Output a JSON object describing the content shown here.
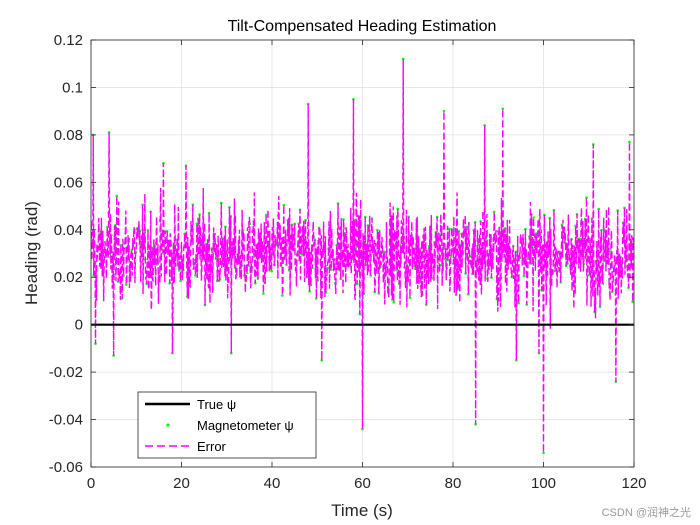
{
  "chart_data": {
    "type": "line",
    "title": "Tilt-Compensated Heading Estimation",
    "xlabel": "Time (s)",
    "ylabel": "Heading (rad)",
    "xlim": [
      0,
      120
    ],
    "ylim": [
      -0.06,
      0.12
    ],
    "xticks": [
      0,
      20,
      40,
      60,
      80,
      100,
      120
    ],
    "xtick_labels": [
      "0",
      "20",
      "40",
      "60",
      "80",
      "100",
      "120"
    ],
    "yticks": [
      -0.06,
      -0.04,
      -0.02,
      0,
      0.02,
      0.04,
      0.06,
      0.08,
      0.1,
      0.12
    ],
    "ytick_labels": [
      "-0.06",
      "-0.04",
      "-0.02",
      "0",
      "0.02",
      "0.04",
      "0.06",
      "0.08",
      "0.1",
      "0.12"
    ],
    "grid": true,
    "legend_position": "bottom-left",
    "series": [
      {
        "name": "True ψ",
        "style": "solid",
        "color": "#000000",
        "x": [
          0,
          120
        ],
        "values": [
          0,
          0
        ]
      },
      {
        "name": "Magnetometer ψ",
        "style": "points",
        "color": "#00ff00",
        "x": [
          0.5,
          1.0,
          4.0,
          5.0,
          16.0,
          18.0,
          21.0,
          31.0,
          48.0,
          51.0,
          58.0,
          60.0,
          69.0,
          78.0,
          85.0,
          87.0,
          91.0,
          94.0,
          99.0,
          100.0,
          111.0,
          116.0,
          119.0
        ],
        "values": [
          0.08,
          -0.008,
          0.081,
          -0.013,
          0.068,
          -0.012,
          0.067,
          -0.012,
          0.093,
          -0.015,
          0.095,
          -0.044,
          0.112,
          0.09,
          -0.042,
          0.084,
          0.091,
          -0.015,
          -0.012,
          -0.054,
          0.076,
          -0.024,
          0.077
        ]
      },
      {
        "name": "Error",
        "style": "dashed",
        "color": "#ff00ff",
        "x": [
          0.5,
          1.0,
          4.0,
          5.0,
          16.0,
          18.0,
          21.0,
          31.0,
          48.0,
          51.0,
          58.0,
          60.0,
          69.0,
          78.0,
          85.0,
          87.0,
          91.0,
          94.0,
          99.0,
          100.0,
          111.0,
          116.0,
          119.0
        ],
        "values": [
          0.08,
          -0.008,
          0.081,
          -0.013,
          0.068,
          -0.012,
          0.067,
          -0.012,
          0.093,
          -0.015,
          0.095,
          -0.044,
          0.112,
          0.09,
          -0.042,
          0.084,
          0.091,
          -0.015,
          -0.012,
          -0.054,
          0.076,
          -0.024,
          0.077
        ],
        "dense_noise": {
          "sample_step": 0.1,
          "typical_range": [
            -0.005,
            0.075
          ],
          "mean": 0.03
        }
      }
    ]
  },
  "watermark": "CSDN @润神之光"
}
